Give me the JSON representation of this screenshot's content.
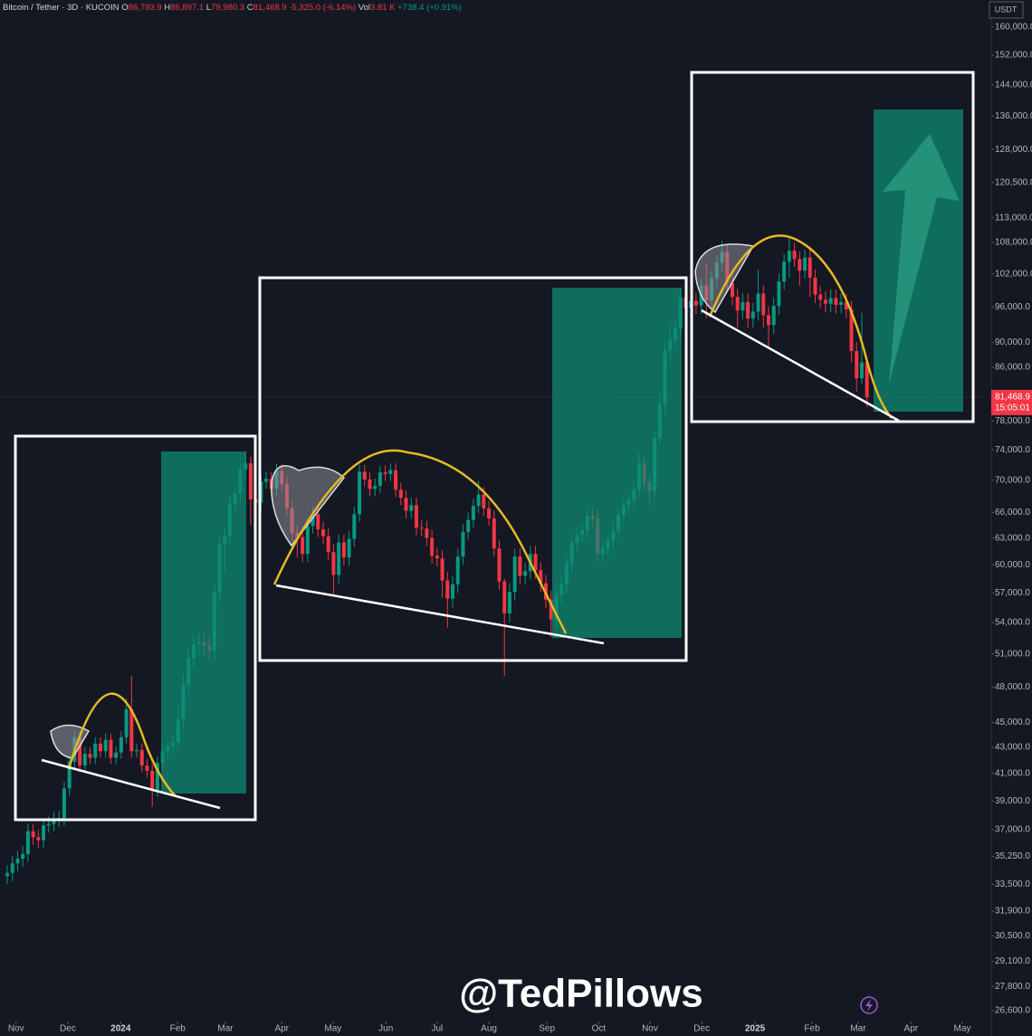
{
  "chart_data": {
    "type": "candlestick",
    "header": {
      "symbol": "Bitcoin / Tether · 3D · KUCOIN",
      "fields": [
        {
          "key": "O",
          "value": "86,793.9"
        },
        {
          "key": "H",
          "value": "86,897.1"
        },
        {
          "key": "L",
          "value": "79,980.3"
        },
        {
          "key": "C",
          "value": "81,468.9"
        }
      ],
      "change": "-5,325.0 (-6.14%)",
      "vol_key": "Vol",
      "vol": "3.81 K",
      "vol_change": "+738.4 (+0.91%)"
    },
    "currency": "USDT",
    "watermark": "@TedPillows",
    "last_price": {
      "value": 81468.9,
      "label": "81,468.9"
    },
    "countdown": "15:05:01",
    "log_scale": true,
    "grid": false,
    "up_color": "#089981",
    "down_color": "#f23645",
    "xlim": [
      -1.4,
      190
    ],
    "ylim": [
      25400,
      168100
    ],
    "xticks": [
      {
        "value": 1.7,
        "label": "Nov"
      },
      {
        "value": 11.7,
        "label": "Dec"
      },
      {
        "value": 21.9,
        "label": "2024"
      },
      {
        "value": 32.9,
        "label": "Feb"
      },
      {
        "value": 42.1,
        "label": "Mar"
      },
      {
        "value": 53,
        "label": "Apr"
      },
      {
        "value": 62.9,
        "label": "May"
      },
      {
        "value": 73.1,
        "label": "Jun"
      },
      {
        "value": 83,
        "label": "Jul"
      },
      {
        "value": 93,
        "label": "Aug"
      },
      {
        "value": 104.2,
        "label": "Sep"
      },
      {
        "value": 114.2,
        "label": "Oct"
      },
      {
        "value": 124.1,
        "label": "Nov"
      },
      {
        "value": 134.1,
        "label": "Dec"
      },
      {
        "value": 144.4,
        "label": "2025"
      },
      {
        "value": 155.4,
        "label": "Feb"
      },
      {
        "value": 164.3,
        "label": "Mar"
      },
      {
        "value": 174.5,
        "label": "Apr"
      },
      {
        "value": 184.4,
        "label": "May"
      }
    ],
    "yticks": [
      {
        "value": 160000,
        "label": "160,000.0"
      },
      {
        "value": 152000,
        "label": "152,000.0"
      },
      {
        "value": 144000,
        "label": "144,000.0"
      },
      {
        "value": 136000,
        "label": "136,000.0"
      },
      {
        "value": 128000,
        "label": "128,000.0"
      },
      {
        "value": 120500,
        "label": "120,500.0"
      },
      {
        "value": 113000,
        "label": "113,000.0"
      },
      {
        "value": 108000,
        "label": "108,000.0"
      },
      {
        "value": 102000,
        "label": "102,000.0"
      },
      {
        "value": 96000,
        "label": "96,000.0"
      },
      {
        "value": 90000,
        "label": "90,000.0"
      },
      {
        "value": 86000,
        "label": "86,000.0"
      },
      {
        "value": 78000,
        "label": "78,000.0"
      },
      {
        "value": 74000,
        "label": "74,000.0"
      },
      {
        "value": 70000,
        "label": "70,000.0"
      },
      {
        "value": 66000,
        "label": "66,000.0"
      },
      {
        "value": 63000,
        "label": "63,000.0"
      },
      {
        "value": 60000,
        "label": "60,000.0"
      },
      {
        "value": 57000,
        "label": "57,000.0"
      },
      {
        "value": 54000,
        "label": "54,000.0"
      },
      {
        "value": 51000,
        "label": "51,000.0"
      },
      {
        "value": 48000,
        "label": "48,000.0"
      },
      {
        "value": 45000,
        "label": "45,000.0"
      },
      {
        "value": 43000,
        "label": "43,000.0"
      },
      {
        "value": 41000,
        "label": "41,000.0"
      },
      {
        "value": 39000,
        "label": "39,000.0"
      },
      {
        "value": 37000,
        "label": "37,000.0"
      },
      {
        "value": 35250,
        "label": "35,250.0"
      },
      {
        "value": 33500,
        "label": "33,500.0"
      },
      {
        "value": 31900,
        "label": "31,900.0"
      },
      {
        "value": 30500,
        "label": "30,500.0"
      },
      {
        "value": 29100,
        "label": "29,100.0"
      },
      {
        "value": 27800,
        "label": "27,800.0"
      },
      {
        "value": 26600,
        "label": "26,600.0"
      }
    ],
    "open": [
      34000,
      34200,
      34800,
      35100,
      35400,
      36900,
      36500,
      36300,
      37300,
      37400,
      37700,
      37800,
      39900,
      41900,
      43800,
      41600,
      42500,
      42200,
      43300,
      42700,
      43600,
      42200,
      42600,
      43800,
      46100,
      42700,
      42800,
      41600,
      41200,
      39800,
      41800,
      42700,
      43100,
      43400,
      45300,
      48200,
      50600,
      51900,
      52100,
      51800,
      51300,
      57000,
      62400,
      63200,
      67100,
      68300,
      71400,
      72200,
      67600,
      67200,
      69800,
      70200,
      68900,
      71200,
      69500,
      66500,
      63600,
      63100,
      61200,
      64400,
      65800,
      64000,
      63200,
      61400,
      58900,
      62500,
      60800,
      62900,
      65800,
      71100,
      70100,
      68900,
      69300,
      71000,
      70800,
      71300,
      68800,
      67800,
      66200,
      66900,
      64200,
      64100,
      63000,
      61000,
      60700,
      58300,
      56400,
      57900,
      60900,
      63700,
      65100,
      66800,
      68200,
      66500,
      65300,
      61800,
      58200,
      54900,
      57100,
      60900,
      58800,
      59300,
      61200,
      59400,
      58000,
      56300,
      54300,
      56800,
      57900,
      60200,
      62500,
      63400,
      63900,
      65600,
      65300,
      61200,
      61800,
      62700,
      63800,
      65700,
      66900,
      67500,
      68800,
      72200,
      69700,
      68600,
      75600,
      80400,
      88700,
      90400,
      92300,
      97700,
      95900,
      97100,
      96300,
      99800,
      97200,
      101200,
      104100,
      106200,
      100300,
      97800,
      95400,
      96900,
      94000,
      95200,
      98400,
      94600,
      92900,
      96200,
      100600,
      104300,
      106400,
      104800,
      102600,
      105100,
      101300,
      98200,
      97300,
      96600,
      97600,
      96400,
      96900,
      95600,
      88600,
      84300,
      86793.9
    ],
    "high": [
      34700,
      35300,
      35600,
      35900,
      37400,
      37400,
      37000,
      37800,
      37900,
      38200,
      38300,
      40400,
      42400,
      44300,
      44300,
      43000,
      43000,
      43800,
      43800,
      44100,
      44100,
      43100,
      44300,
      47000,
      49000,
      43300,
      43300,
      42100,
      41700,
      42300,
      43200,
      43600,
      43900,
      46200,
      49100,
      51500,
      52800,
      53000,
      53000,
      52700,
      57900,
      63300,
      64100,
      68000,
      69200,
      72300,
      73800,
      73100,
      68500,
      70700,
      71100,
      71100,
      72100,
      72100,
      70400,
      67400,
      64500,
      64000,
      65300,
      66700,
      66700,
      64900,
      64100,
      62300,
      63400,
      63400,
      63800,
      66700,
      72000,
      72000,
      71000,
      70200,
      71900,
      71900,
      72200,
      72200,
      69700,
      68700,
      67800,
      67800,
      65100,
      65000,
      63900,
      61900,
      61600,
      59200,
      58800,
      61800,
      64600,
      66000,
      67700,
      69900,
      69100,
      67400,
      66200,
      62700,
      58500,
      58000,
      61800,
      61800,
      60200,
      62100,
      62100,
      60300,
      58900,
      57200,
      57700,
      58800,
      61100,
      63400,
      64300,
      64800,
      66500,
      66500,
      66200,
      62700,
      63600,
      64700,
      66600,
      67800,
      68400,
      69700,
      73600,
      73100,
      70600,
      76500,
      81900,
      90200,
      93200,
      93800,
      99200,
      99500,
      98600,
      98600,
      101300,
      103800,
      102700,
      105600,
      108300,
      107700,
      101800,
      99300,
      98400,
      98400,
      96700,
      102700,
      99900,
      96100,
      97700,
      102100,
      105800,
      109300,
      107900,
      106300,
      106600,
      106600,
      102800,
      99700,
      98800,
      99100,
      99100,
      98400,
      98400,
      97100,
      90100,
      95000,
      86897.1
    ],
    "low": [
      33500,
      33700,
      34300,
      34600,
      34900,
      36000,
      35800,
      35800,
      36800,
      36900,
      37200,
      37300,
      39400,
      41400,
      41100,
      41100,
      41700,
      41700,
      42200,
      42200,
      41700,
      41700,
      42100,
      43300,
      42200,
      42200,
      41100,
      40700,
      38600,
      39300,
      41300,
      42200,
      42600,
      42900,
      44400,
      47300,
      49700,
      51000,
      50900,
      50400,
      50400,
      56100,
      59100,
      62300,
      66200,
      67400,
      70500,
      64500,
      66300,
      66300,
      68900,
      68000,
      68000,
      68600,
      65600,
      62700,
      60800,
      60300,
      60300,
      63500,
      63100,
      62300,
      60500,
      56600,
      58000,
      59900,
      59900,
      62000,
      64900,
      69200,
      68000,
      68000,
      68400,
      69900,
      69900,
      67900,
      66900,
      65300,
      65300,
      63300,
      63200,
      62100,
      60100,
      59800,
      56500,
      53500,
      55500,
      57000,
      60000,
      62800,
      64200,
      65900,
      65600,
      64400,
      60900,
      57300,
      49000,
      54000,
      56200,
      57900,
      57900,
      58400,
      58500,
      57100,
      55400,
      52600,
      53400,
      55900,
      57000,
      59300,
      61600,
      62500,
      63000,
      64400,
      60300,
      60300,
      60900,
      61800,
      62900,
      64800,
      66000,
      66600,
      67900,
      68800,
      66800,
      67700,
      74700,
      78900,
      86900,
      88900,
      90800,
      94400,
      94400,
      94800,
      94800,
      94000,
      95700,
      99700,
      102600,
      98800,
      96300,
      92500,
      93900,
      92500,
      92500,
      93700,
      92500,
      89300,
      91400,
      94700,
      99100,
      101300,
      103300,
      99800,
      101100,
      97800,
      96700,
      95800,
      95100,
      95100,
      94900,
      94900,
      94100,
      86800,
      82300,
      83500,
      79980.3
    ],
    "close": [
      34200,
      34800,
      35100,
      35400,
      36900,
      36500,
      36300,
      37300,
      37400,
      37700,
      37800,
      39900,
      41900,
      43800,
      41600,
      42500,
      42200,
      43300,
      42700,
      43600,
      42200,
      42600,
      43800,
      46100,
      42700,
      42800,
      41600,
      41200,
      39800,
      41800,
      42700,
      43100,
      43400,
      45300,
      48200,
      50600,
      51900,
      52100,
      51800,
      51300,
      57000,
      62400,
      63200,
      67100,
      68300,
      71400,
      72200,
      67600,
      67200,
      69800,
      70200,
      68900,
      71200,
      69500,
      66500,
      63600,
      63100,
      61200,
      64400,
      65800,
      64000,
      63200,
      61400,
      58900,
      62500,
      60800,
      62900,
      65800,
      71100,
      70100,
      68900,
      69300,
      71000,
      70800,
      71300,
      68800,
      67800,
      66200,
      66900,
      64200,
      64100,
      63000,
      61000,
      60700,
      58300,
      56400,
      57900,
      60900,
      63700,
      65100,
      66800,
      68200,
      66500,
      65300,
      61800,
      58200,
      54900,
      57100,
      60900,
      58800,
      59300,
      61200,
      59400,
      58000,
      56300,
      54300,
      56800,
      57900,
      60200,
      62500,
      63400,
      63900,
      65600,
      65300,
      61200,
      61800,
      62700,
      63800,
      65700,
      66900,
      67500,
      68800,
      72200,
      69700,
      68600,
      75600,
      80400,
      88700,
      90400,
      92300,
      97700,
      95900,
      97100,
      96300,
      99800,
      97200,
      101200,
      104100,
      106200,
      100300,
      97800,
      95400,
      96900,
      94000,
      95200,
      98400,
      94600,
      92900,
      96200,
      100600,
      104300,
      106400,
      104800,
      102600,
      105100,
      101300,
      98200,
      97300,
      96600,
      97600,
      96400,
      96900,
      95600,
      88600,
      84300,
      86793.9,
      81468.9
    ]
  }
}
